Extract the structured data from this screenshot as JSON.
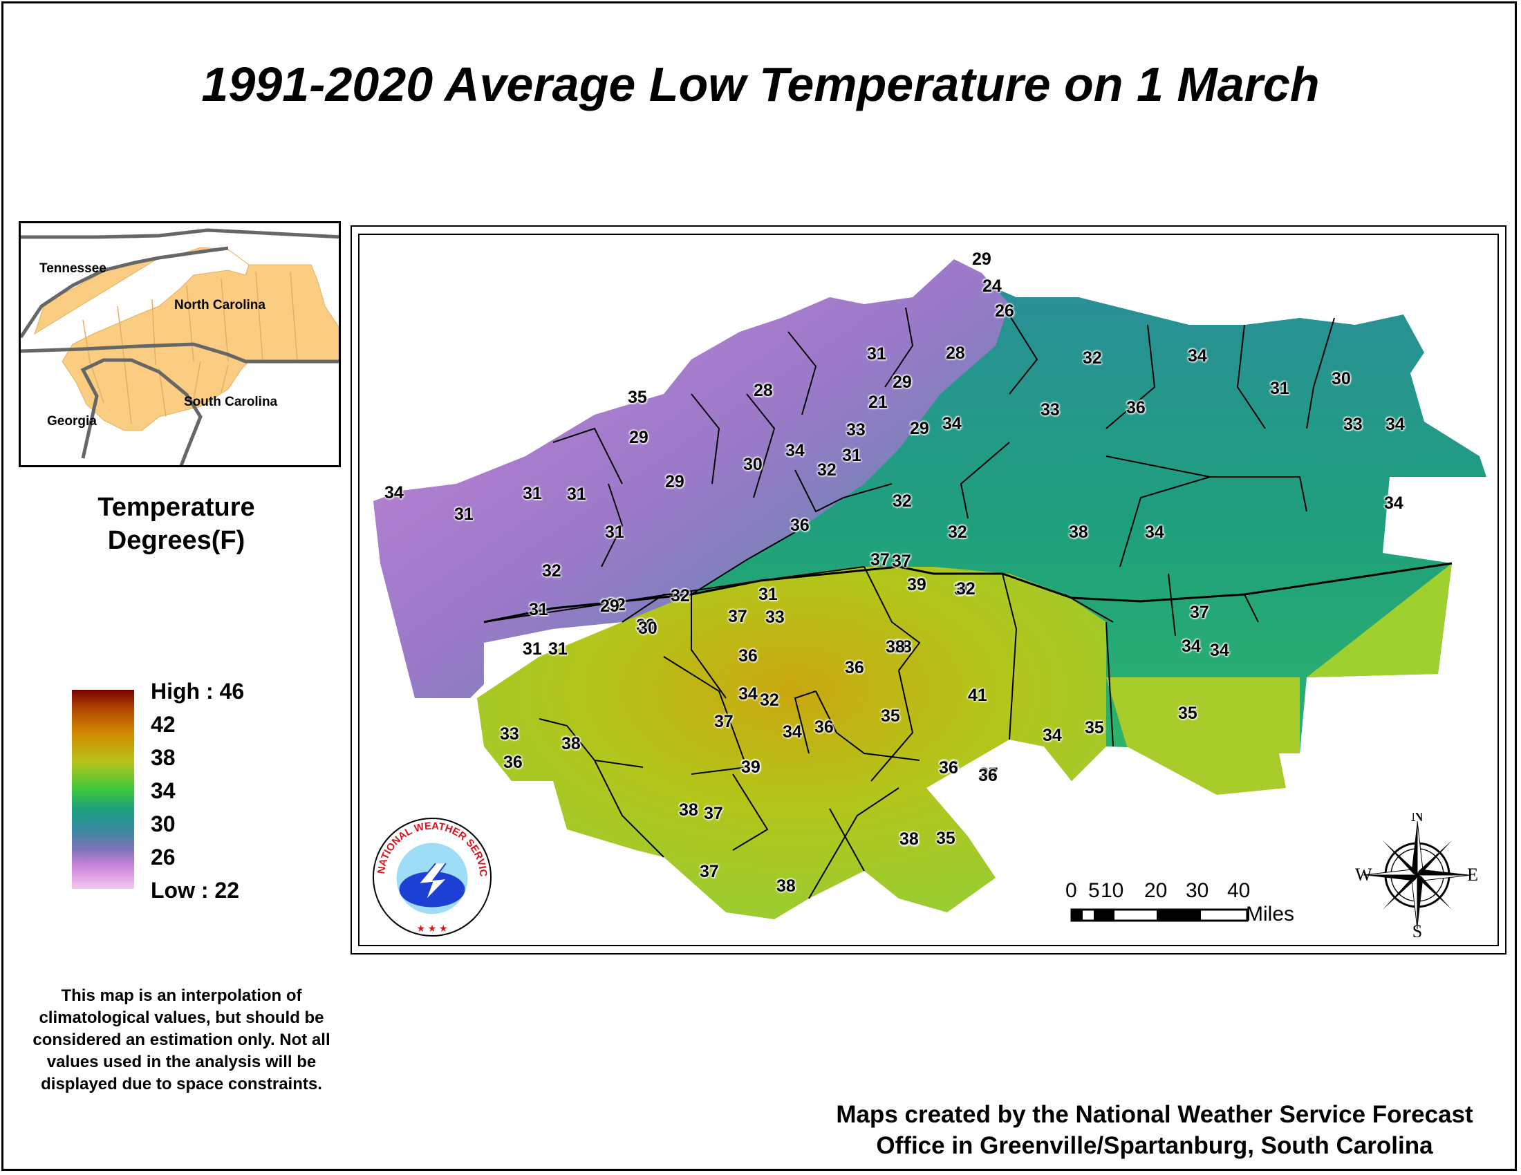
{
  "title": "1991-2020 Average Low Temperature on 1 March",
  "inset": {
    "labels": {
      "tennessee": "Tennessee",
      "north_carolina": "North Carolina",
      "south_carolina": "South Carolina",
      "georgia": "Georgia"
    },
    "colors": {
      "fill": "#fbcd82",
      "border": "#666666"
    }
  },
  "legend": {
    "title_line1": "Temperature",
    "title_line2": "Degrees(F)",
    "ticks": [
      "High : 46",
      "42",
      "38",
      "34",
      "30",
      "26",
      "Low : 22"
    ],
    "colors": [
      "#7a0000",
      "#b24a00",
      "#d28a00",
      "#b8c21a",
      "#3ec83a",
      "#1fa07c",
      "#2a8e99",
      "#7c74b8",
      "#c882d8",
      "#f5c8f0"
    ]
  },
  "note": "This map is an interpolation of climatological values, but should be considered an estimation only. Not all values used in the analysis will be displayed due to space constraints.",
  "credit_line1": "Maps created by the National Weather Service Forecast",
  "credit_line2": "Office in Greenville/Spartanburg, South Carolina",
  "scale_bar": {
    "ticks": [
      "0",
      "5",
      "10",
      "20",
      "30",
      "40"
    ],
    "unit": "Miles"
  },
  "compass": {
    "n": "N",
    "s": "S",
    "e": "E",
    "w": "W"
  },
  "logo": {
    "text": "NATIONAL WEATHER SERVICE"
  },
  "values": [
    "29",
    "24",
    "26",
    "28",
    "31",
    "29",
    "21",
    "33",
    "31",
    "29",
    "34",
    "32",
    "34",
    "36",
    "33",
    "31",
    "30",
    "33",
    "34",
    "34",
    "28",
    "35",
    "29",
    "30",
    "34",
    "29",
    "31",
    "31",
    "34",
    "31",
    "31",
    "32",
    "32",
    "32",
    "36",
    "37",
    "39",
    "38",
    "34",
    "37",
    "30",
    "31",
    "32",
    "37",
    "32",
    "32",
    "33",
    "30",
    "32",
    "31",
    "29",
    "31",
    "31",
    "32",
    "30",
    "33",
    "36",
    "38",
    "41",
    "36",
    "38",
    "37",
    "34",
    "34",
    "35",
    "34",
    "39",
    "37",
    "34",
    "36",
    "35",
    "36",
    "37",
    "34",
    "35",
    "33",
    "36",
    "38",
    "38",
    "37",
    "39",
    "36",
    "36",
    "38",
    "35",
    "37",
    "38",
    "38"
  ]
}
